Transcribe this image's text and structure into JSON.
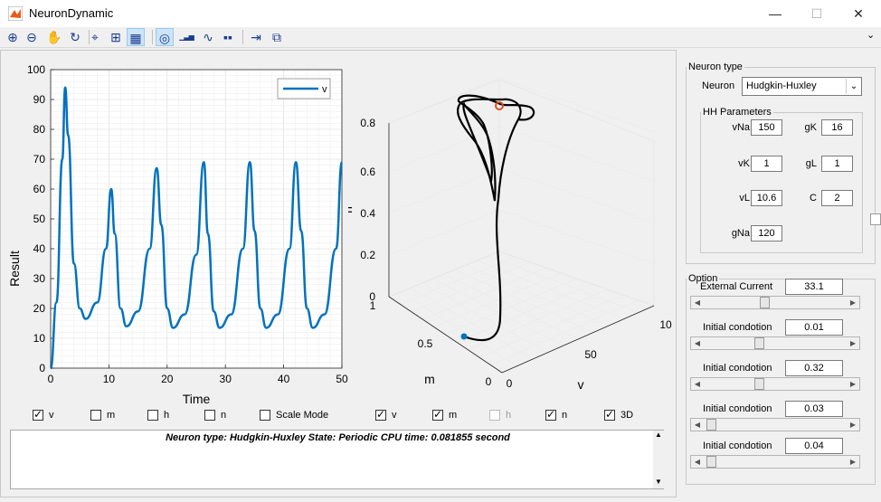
{
  "window": {
    "title": "NeuronDynamic",
    "minimize": "—",
    "maximize": "☐",
    "close": "✕"
  },
  "toolbar": {
    "buttons": [
      {
        "name": "zoom-in-icon",
        "glyph": "⊕"
      },
      {
        "name": "zoom-out-icon",
        "glyph": "⊖"
      },
      {
        "name": "pan-hand-icon",
        "glyph": "✋"
      },
      {
        "name": "rotate-3d-icon",
        "glyph": "↻"
      },
      {
        "name": "data-cursor-icon",
        "glyph": "⌖"
      },
      {
        "name": "grid-icon",
        "glyph": "⊞"
      },
      {
        "name": "grid-minor-icon",
        "glyph": "▦"
      },
      {
        "name": "phase-portrait-icon",
        "glyph": "◎"
      },
      {
        "name": "bar-plot-icon",
        "glyph": "▁▃▅"
      },
      {
        "name": "trajectory-icon",
        "glyph": "∿"
      },
      {
        "name": "colorbar-icon",
        "glyph": "▪▪"
      },
      {
        "name": "export-icon",
        "glyph": "⇥"
      },
      {
        "name": "dock-figure-icon",
        "glyph": "⧉"
      }
    ],
    "overflow": "⌄"
  },
  "plot2d": {
    "ylabel": "Result",
    "xlabel": "Time",
    "yticks": [
      "0",
      "10",
      "20",
      "30",
      "40",
      "50",
      "60",
      "70",
      "80",
      "90",
      "100"
    ],
    "xticks": [
      "0",
      "10",
      "20",
      "30",
      "40",
      "50"
    ],
    "legend": "v"
  },
  "plot3d": {
    "zlabel": "n",
    "mlabel": "m",
    "vlabel": "v",
    "zticks": [
      "0",
      "0.2",
      "0.4",
      "0.6",
      "0.8"
    ],
    "mticks": [
      "1",
      "0.5",
      "0"
    ],
    "vticks": [
      "0",
      "50",
      "10"
    ]
  },
  "chart_data": [
    {
      "type": "line",
      "xlabel": "Time",
      "ylabel": "Result",
      "xlim": [
        0,
        50
      ],
      "ylim": [
        0,
        100
      ],
      "grid": true,
      "legend_position": "top-right",
      "series": [
        {
          "name": "v",
          "color": "#0072bd",
          "x": [
            0,
            1,
            2,
            2.5,
            3,
            4,
            5,
            6,
            8,
            9.5,
            10.4,
            11,
            12,
            13,
            15,
            17,
            18.2,
            19,
            20,
            21,
            23,
            25,
            26.3,
            27,
            28,
            29,
            31,
            33,
            34.2,
            35,
            36,
            37,
            39,
            41,
            42.1,
            43,
            44,
            45,
            47,
            49,
            50
          ],
          "y": [
            0,
            22,
            70,
            94,
            78,
            35,
            20,
            16.5,
            22,
            40,
            60,
            45,
            20,
            14,
            19,
            40,
            67,
            48,
            20,
            13.5,
            18,
            38,
            69,
            45,
            19,
            13.5,
            18,
            40,
            69,
            46,
            20,
            13.5,
            18,
            40,
            69,
            46,
            20,
            13.5,
            18,
            40,
            69
          ]
        }
      ]
    },
    {
      "type": "line",
      "zlabel": "n",
      "xlabel": "v",
      "ylabel": "m",
      "zlim": [
        0,
        0.8
      ],
      "grid": true,
      "series": [
        {
          "name": "",
          "color": "#000000",
          "values": "3D limit-cycle trajectory from (v≈0, m≈0, n≈0.32) to periodic orbit"
        }
      ]
    }
  ],
  "checkboxes": [
    {
      "label": "v",
      "checked": true
    },
    {
      "label": "m",
      "checked": false
    },
    {
      "label": "h",
      "checked": false
    },
    {
      "label": "n",
      "checked": false
    },
    {
      "label": "Scale Mode",
      "checked": false
    },
    {
      "label": "v",
      "checked": true
    },
    {
      "label": "m",
      "checked": true
    },
    {
      "label": "h",
      "checked": false
    },
    {
      "label": "n",
      "checked": true
    },
    {
      "label": "3D",
      "checked": true
    }
  ],
  "status": "Neuron type: Hudgkin-Huxley   State: Periodic    CPU time: 0.081855 second",
  "neuron_panel": {
    "legend": "Neuron type",
    "neuron_label": "Neuron",
    "neuron_value": "Hudgkin-Huxley",
    "hh_legend": "HH Parameters",
    "params": [
      {
        "label": "vNa",
        "value": "150"
      },
      {
        "label": "gK",
        "value": "16"
      },
      {
        "label": "vK",
        "value": "1"
      },
      {
        "label": "gL",
        "value": "1"
      },
      {
        "label": "vL",
        "value": "10.6"
      },
      {
        "label": "C",
        "value": "2"
      },
      {
        "label": "gNa",
        "value": "120"
      }
    ]
  },
  "option_panel": {
    "legend": "Option",
    "rows": [
      {
        "label": "External Current",
        "value": "33.1",
        "slider": 0.42
      },
      {
        "label": "Initial condotion",
        "value": "0.01",
        "slider": 0.38
      },
      {
        "label": "Initial condotion",
        "value": "0.32",
        "slider": 0.38
      },
      {
        "label": "Initial condotion",
        "value": "0.03",
        "slider": 0.02
      },
      {
        "label": "Initial condotion",
        "value": "0.04",
        "slider": 0.02
      }
    ]
  }
}
